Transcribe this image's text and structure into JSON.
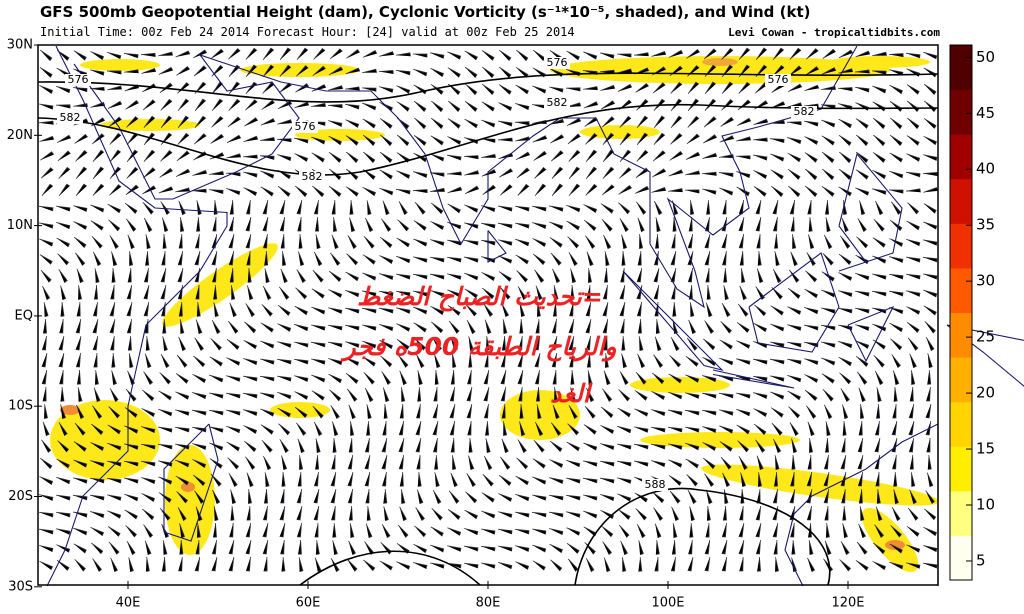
{
  "header": {
    "title": "GFS 500mb Geopotential Height (dam), Cyclonic Vorticity (s⁻¹*10⁻⁵, shaded), and Wind (kt)",
    "subtitle": "Initial Time: 00z Feb 24 2014 Forecast Hour: [24] valid at 00z Feb 25 2014",
    "credit": "Levi Cowan - tropicaltidbits.com"
  },
  "map": {
    "lat_labels": [
      "30N",
      "20N",
      "10N",
      "EQ",
      "10S",
      "20S",
      "30S"
    ],
    "lon_labels": [
      "40E",
      "60E",
      "80E",
      "100E",
      "120E"
    ],
    "contour_labels": [
      "576",
      "576",
      "576",
      "576",
      "582",
      "582",
      "582",
      "582",
      "588"
    ]
  },
  "colorbar": {
    "lim": [
      3.3,
      51.1
    ],
    "ticks": [
      5,
      10,
      15,
      20,
      25,
      30,
      35,
      40,
      45,
      50
    ]
  },
  "overlay": {
    "lines": [
      "=تحديث الصباح الضغط",
      "والرياح الطبقة 500ه فجر",
      "الغد"
    ]
  }
}
